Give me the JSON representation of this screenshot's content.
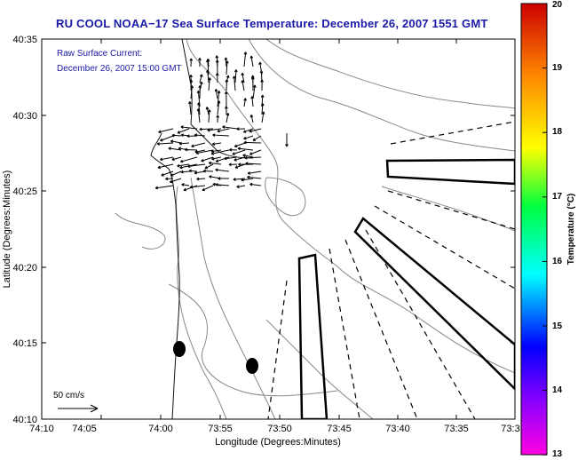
{
  "title": "RU COOL  NOAA−17  Sea Surface Temperature:  December 26, 2007 1551 GMT",
  "current_label": {
    "line1": "Raw Surface Current:",
    "line2": "December 26, 2007 15:00 GMT"
  },
  "scale_label": "50 cm/s",
  "axes": {
    "xlabel": "Longitude (Degrees:Minutes)",
    "ylabel": "Latitude (Degrees:Minutes)",
    "xticks": [
      "74:10",
      "74:05",
      "74:00",
      "73:55",
      "73:50",
      "73:45",
      "73:40",
      "73:35",
      "73:3"
    ],
    "yticks": [
      "40:35",
      "40:30",
      "40:25",
      "40:20",
      "40:15",
      "40:10"
    ]
  },
  "colorbar": {
    "label": "Temperature (°C)",
    "ticks": [
      "20",
      "19",
      "18",
      "17",
      "16",
      "15",
      "14",
      "13"
    ],
    "min": 13,
    "max": 20
  }
}
